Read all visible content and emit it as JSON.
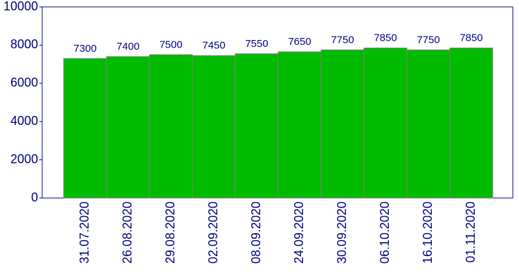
{
  "chart_data": {
    "type": "bar",
    "categories": [
      "31.07.2020",
      "26.08.2020",
      "29.08.2020",
      "02.09.2020",
      "08.09.2020",
      "24.09.2020",
      "30.09.2020",
      "06.10.2020",
      "16.10.2020",
      "01.11.2020"
    ],
    "values": [
      7300,
      7400,
      7500,
      7450,
      7550,
      7650,
      7750,
      7850,
      7750,
      7850
    ],
    "color": "#00bb00",
    "ylim": [
      0,
      10000
    ],
    "yticks": [
      0,
      2000,
      4000,
      6000,
      8000,
      10000
    ],
    "grid": false
  }
}
